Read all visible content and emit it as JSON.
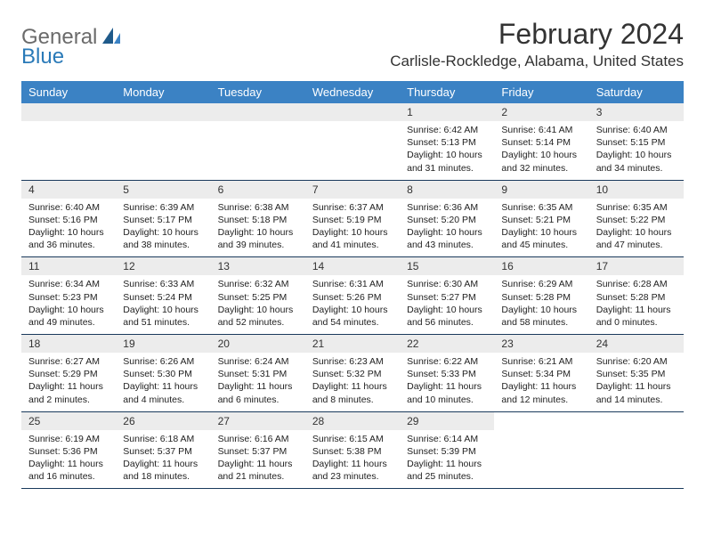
{
  "logo": {
    "general": "General",
    "blue": "Blue"
  },
  "title": "February 2024",
  "location": "Carlisle-Rockledge, Alabama, United States",
  "colors": {
    "header_bg": "#3b82c4",
    "header_text": "#ffffff",
    "daynum_bg": "#ececec",
    "border": "#1a3a5c",
    "logo_gray": "#6b6b6b",
    "logo_blue": "#2a7ab8"
  },
  "dayHeaders": [
    "Sunday",
    "Monday",
    "Tuesday",
    "Wednesday",
    "Thursday",
    "Friday",
    "Saturday"
  ],
  "weeks": [
    [
      null,
      null,
      null,
      null,
      {
        "n": "1",
        "sr": "6:42 AM",
        "ss": "5:13 PM",
        "dl": "10 hours and 31 minutes."
      },
      {
        "n": "2",
        "sr": "6:41 AM",
        "ss": "5:14 PM",
        "dl": "10 hours and 32 minutes."
      },
      {
        "n": "3",
        "sr": "6:40 AM",
        "ss": "5:15 PM",
        "dl": "10 hours and 34 minutes."
      }
    ],
    [
      {
        "n": "4",
        "sr": "6:40 AM",
        "ss": "5:16 PM",
        "dl": "10 hours and 36 minutes."
      },
      {
        "n": "5",
        "sr": "6:39 AM",
        "ss": "5:17 PM",
        "dl": "10 hours and 38 minutes."
      },
      {
        "n": "6",
        "sr": "6:38 AM",
        "ss": "5:18 PM",
        "dl": "10 hours and 39 minutes."
      },
      {
        "n": "7",
        "sr": "6:37 AM",
        "ss": "5:19 PM",
        "dl": "10 hours and 41 minutes."
      },
      {
        "n": "8",
        "sr": "6:36 AM",
        "ss": "5:20 PM",
        "dl": "10 hours and 43 minutes."
      },
      {
        "n": "9",
        "sr": "6:35 AM",
        "ss": "5:21 PM",
        "dl": "10 hours and 45 minutes."
      },
      {
        "n": "10",
        "sr": "6:35 AM",
        "ss": "5:22 PM",
        "dl": "10 hours and 47 minutes."
      }
    ],
    [
      {
        "n": "11",
        "sr": "6:34 AM",
        "ss": "5:23 PM",
        "dl": "10 hours and 49 minutes."
      },
      {
        "n": "12",
        "sr": "6:33 AM",
        "ss": "5:24 PM",
        "dl": "10 hours and 51 minutes."
      },
      {
        "n": "13",
        "sr": "6:32 AM",
        "ss": "5:25 PM",
        "dl": "10 hours and 52 minutes."
      },
      {
        "n": "14",
        "sr": "6:31 AM",
        "ss": "5:26 PM",
        "dl": "10 hours and 54 minutes."
      },
      {
        "n": "15",
        "sr": "6:30 AM",
        "ss": "5:27 PM",
        "dl": "10 hours and 56 minutes."
      },
      {
        "n": "16",
        "sr": "6:29 AM",
        "ss": "5:28 PM",
        "dl": "10 hours and 58 minutes."
      },
      {
        "n": "17",
        "sr": "6:28 AM",
        "ss": "5:28 PM",
        "dl": "11 hours and 0 minutes."
      }
    ],
    [
      {
        "n": "18",
        "sr": "6:27 AM",
        "ss": "5:29 PM",
        "dl": "11 hours and 2 minutes."
      },
      {
        "n": "19",
        "sr": "6:26 AM",
        "ss": "5:30 PM",
        "dl": "11 hours and 4 minutes."
      },
      {
        "n": "20",
        "sr": "6:24 AM",
        "ss": "5:31 PM",
        "dl": "11 hours and 6 minutes."
      },
      {
        "n": "21",
        "sr": "6:23 AM",
        "ss": "5:32 PM",
        "dl": "11 hours and 8 minutes."
      },
      {
        "n": "22",
        "sr": "6:22 AM",
        "ss": "5:33 PM",
        "dl": "11 hours and 10 minutes."
      },
      {
        "n": "23",
        "sr": "6:21 AM",
        "ss": "5:34 PM",
        "dl": "11 hours and 12 minutes."
      },
      {
        "n": "24",
        "sr": "6:20 AM",
        "ss": "5:35 PM",
        "dl": "11 hours and 14 minutes."
      }
    ],
    [
      {
        "n": "25",
        "sr": "6:19 AM",
        "ss": "5:36 PM",
        "dl": "11 hours and 16 minutes."
      },
      {
        "n": "26",
        "sr": "6:18 AM",
        "ss": "5:37 PM",
        "dl": "11 hours and 18 minutes."
      },
      {
        "n": "27",
        "sr": "6:16 AM",
        "ss": "5:37 PM",
        "dl": "11 hours and 21 minutes."
      },
      {
        "n": "28",
        "sr": "6:15 AM",
        "ss": "5:38 PM",
        "dl": "11 hours and 23 minutes."
      },
      {
        "n": "29",
        "sr": "6:14 AM",
        "ss": "5:39 PM",
        "dl": "11 hours and 25 minutes."
      },
      null,
      null
    ]
  ],
  "labels": {
    "sunrise": "Sunrise: ",
    "sunset": "Sunset: ",
    "daylight": "Daylight: "
  }
}
